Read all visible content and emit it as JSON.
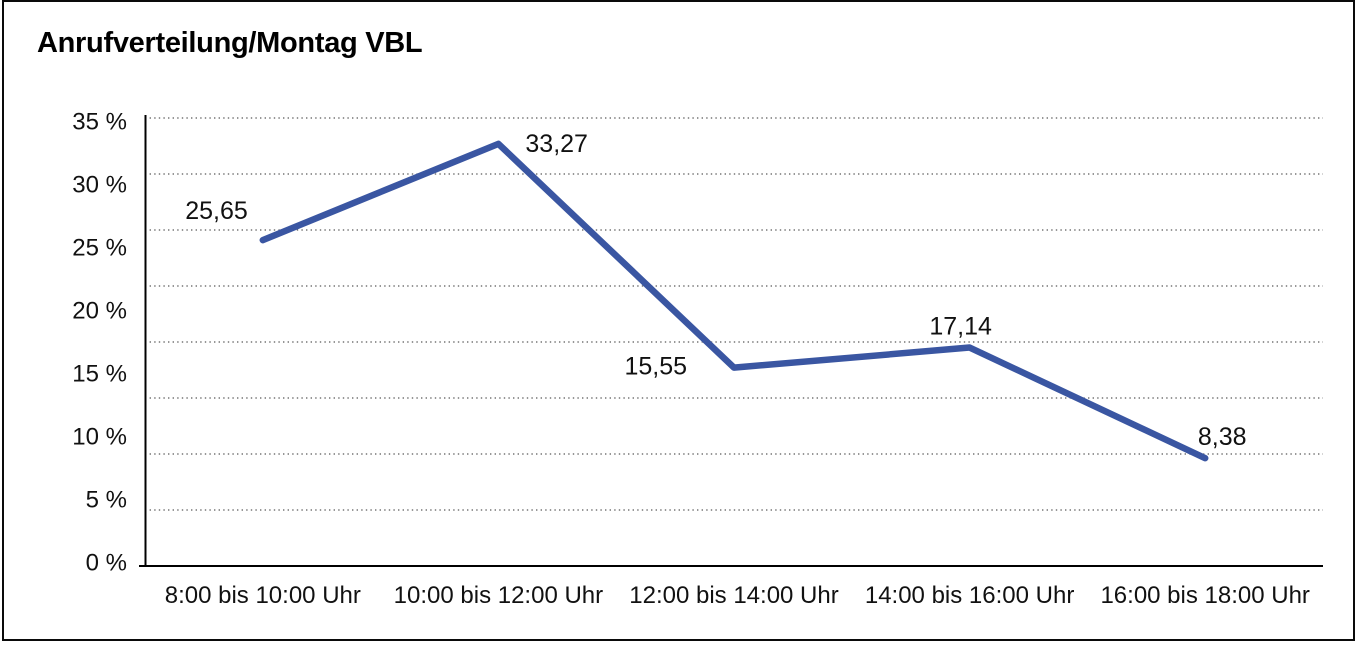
{
  "chart": {
    "title": "Anrufverteilung/Montag VBL"
  },
  "chart_data": {
    "type": "line",
    "title": "Anrufverteilung/Montag VBL",
    "categories": [
      "8:00 bis 10:00 Uhr",
      "10:00 bis 12:00 Uhr",
      "12:00 bis 14:00 Uhr",
      "14:00 bis 16:00 Uhr",
      "16:00 bis 18:00 Uhr"
    ],
    "values": [
      25.65,
      33.27,
      15.55,
      17.14,
      8.38
    ],
    "value_labels": [
      "25,65",
      "33,27",
      "15,55",
      "17,14",
      "8,38"
    ],
    "y_tick_labels": [
      "0 %",
      "5 %",
      "10 %",
      "15 %",
      "20 %",
      "25 %",
      "30 %",
      "35 %"
    ],
    "ylim": [
      0,
      35
    ],
    "y_tick_step": 5,
    "unit": "%",
    "decimal_separator": ",",
    "xlabel": "",
    "ylabel": "",
    "grid": "horizontal-dotted",
    "legend": "none",
    "line_color": "#3A56A2",
    "axis_color": "#000000",
    "grid_color": "#595959",
    "text_color": "#111111"
  }
}
